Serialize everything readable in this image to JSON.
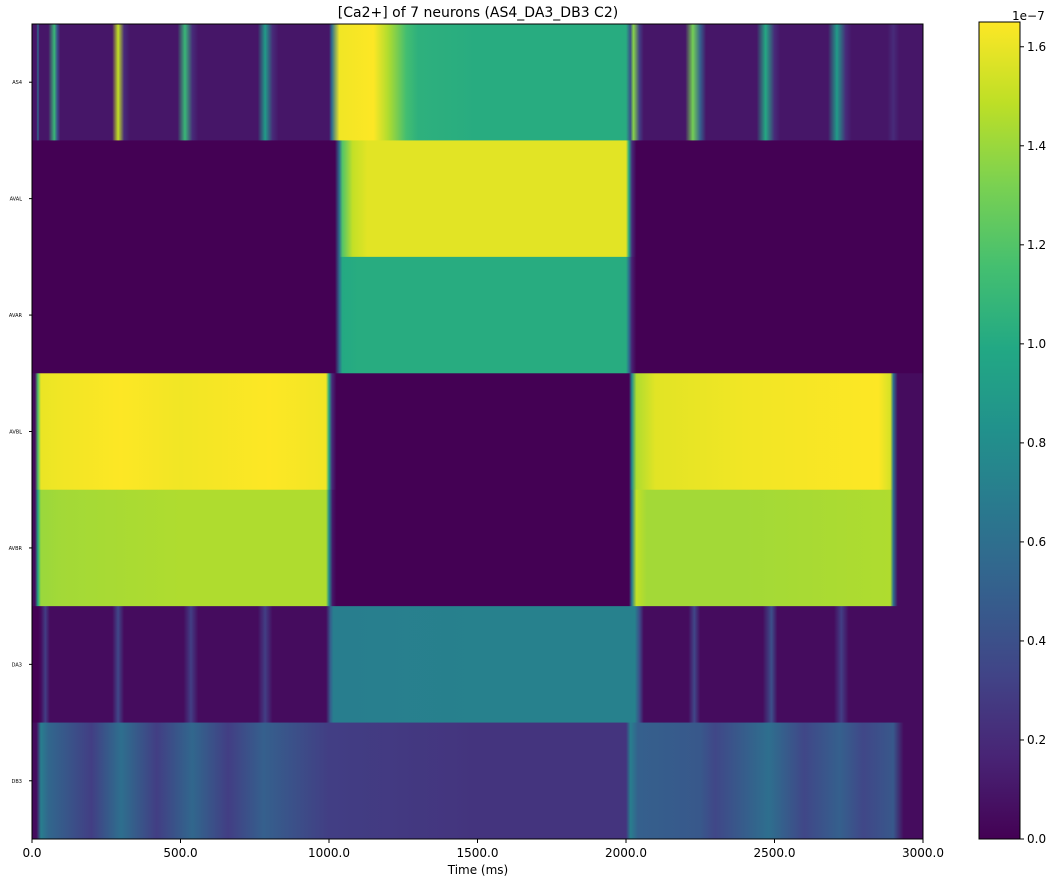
{
  "chart_data": {
    "type": "heatmap",
    "title": "[Ca2+] of 7 neurons (AS4_DA3_DB3 C2)",
    "xlabel": "Time (ms)",
    "ylabel": "",
    "xlim": [
      0,
      3000
    ],
    "x_ticks": [
      0,
      500,
      1000,
      1500,
      2000,
      2500,
      3000
    ],
    "x_tick_labels": [
      "0.0",
      "500.0",
      "1000.0",
      "1500.0",
      "2000.0",
      "2500.0",
      "3000.0"
    ],
    "rows": [
      "AS4",
      "AVAL",
      "AVAR",
      "AVBL",
      "AVBR",
      "DA3",
      "DB3"
    ],
    "colormap": "viridis",
    "colorbar": {
      "range": [
        0,
        1.65e-07
      ],
      "exponent_label": "1e−7",
      "ticks": [
        0,
        0.2,
        0.4,
        0.6,
        0.8,
        1.0,
        1.2,
        1.4,
        1.6
      ],
      "tick_labels": [
        "0.0",
        "0.2",
        "0.4",
        "0.6",
        "0.8",
        "1.0",
        "1.2",
        "1.4",
        "1.6"
      ],
      "scale": 1e-07
    },
    "series": [
      {
        "name": "AS4",
        "values_1e7": [
          [
            0,
            0.1
          ],
          [
            15,
            0.1
          ],
          [
            20,
            0.6
          ],
          [
            25,
            0.1
          ],
          [
            55,
            0.1
          ],
          [
            75,
            1.1
          ],
          [
            85,
            0.4
          ],
          [
            95,
            0.1
          ],
          [
            270,
            0.1
          ],
          [
            290,
            1.5
          ],
          [
            310,
            0.2
          ],
          [
            330,
            0.1
          ],
          [
            490,
            0.1
          ],
          [
            515,
            1.1
          ],
          [
            540,
            0.2
          ],
          [
            560,
            0.1
          ],
          [
            760,
            0.1
          ],
          [
            785,
            0.9
          ],
          [
            810,
            0.2
          ],
          [
            830,
            0.1
          ],
          [
            1000,
            0.1
          ],
          [
            1010,
            0.6
          ],
          [
            1035,
            1.62
          ],
          [
            1150,
            1.65
          ],
          [
            1200,
            1.45
          ],
          [
            1260,
            1.15
          ],
          [
            1300,
            1.05
          ],
          [
            1500,
            1.02
          ],
          [
            2000,
            1.02
          ],
          [
            2015,
            0.4
          ],
          [
            2025,
            1.35
          ],
          [
            2045,
            0.3
          ],
          [
            2060,
            0.1
          ],
          [
            2200,
            0.1
          ],
          [
            2225,
            1.3
          ],
          [
            2250,
            0.5
          ],
          [
            2270,
            0.1
          ],
          [
            2440,
            0.1
          ],
          [
            2470,
            1.0
          ],
          [
            2500,
            0.2
          ],
          [
            2520,
            0.1
          ],
          [
            2680,
            0.1
          ],
          [
            2710,
            0.9
          ],
          [
            2740,
            0.2
          ],
          [
            2760,
            0.1
          ],
          [
            2880,
            0.1
          ],
          [
            2900,
            0.2
          ],
          [
            2920,
            0.1
          ],
          [
            3000,
            0.1
          ]
        ]
      },
      {
        "name": "AVAL",
        "values_1e7": [
          [
            0,
            0.0
          ],
          [
            1020,
            0.0
          ],
          [
            1035,
            0.6
          ],
          [
            1045,
            1.2
          ],
          [
            1080,
            1.5
          ],
          [
            1130,
            1.58
          ],
          [
            1200,
            1.58
          ],
          [
            2000,
            1.58
          ],
          [
            2010,
            1.0
          ],
          [
            2020,
            0.2
          ],
          [
            2035,
            0.0
          ],
          [
            3000,
            0.0
          ]
        ]
      },
      {
        "name": "AVAR",
        "values_1e7": [
          [
            0,
            0.0
          ],
          [
            1020,
            0.0
          ],
          [
            1035,
            0.6
          ],
          [
            1045,
            1.0
          ],
          [
            1100,
            1.02
          ],
          [
            2000,
            1.02
          ],
          [
            2010,
            0.6
          ],
          [
            2020,
            0.15
          ],
          [
            2035,
            0.0
          ],
          [
            3000,
            0.0
          ]
        ]
      },
      {
        "name": "AVBL",
        "values_1e7": [
          [
            0,
            0.05
          ],
          [
            10,
            0.05
          ],
          [
            20,
            1.2
          ],
          [
            30,
            1.6
          ],
          [
            100,
            1.62
          ],
          [
            300,
            1.65
          ],
          [
            500,
            1.62
          ],
          [
            800,
            1.65
          ],
          [
            990,
            1.62
          ],
          [
            1000,
            1.0
          ],
          [
            1010,
            0.2
          ],
          [
            1025,
            0.0
          ],
          [
            2010,
            0.0
          ],
          [
            2020,
            0.8
          ],
          [
            2035,
            1.45
          ],
          [
            2100,
            1.58
          ],
          [
            2400,
            1.62
          ],
          [
            2850,
            1.65
          ],
          [
            2890,
            1.55
          ],
          [
            2900,
            0.6
          ],
          [
            2915,
            0.05
          ],
          [
            3000,
            0.05
          ]
        ]
      },
      {
        "name": "AVBR",
        "values_1e7": [
          [
            0,
            0.05
          ],
          [
            10,
            0.05
          ],
          [
            20,
            1.0
          ],
          [
            30,
            1.4
          ],
          [
            100,
            1.42
          ],
          [
            500,
            1.45
          ],
          [
            990,
            1.45
          ],
          [
            1000,
            0.8
          ],
          [
            1012,
            0.1
          ],
          [
            1025,
            0.0
          ],
          [
            2010,
            0.0
          ],
          [
            2020,
            0.7
          ],
          [
            2035,
            1.5
          ],
          [
            2070,
            1.42
          ],
          [
            2400,
            1.42
          ],
          [
            2890,
            1.45
          ],
          [
            2900,
            0.6
          ],
          [
            2915,
            0.05
          ],
          [
            3000,
            0.05
          ]
        ]
      },
      {
        "name": "DA3",
        "values_1e7": [
          [
            0,
            0.0
          ],
          [
            20,
            0.0
          ],
          [
            30,
            0.05
          ],
          [
            45,
            0.3
          ],
          [
            60,
            0.05
          ],
          [
            270,
            0.05
          ],
          [
            290,
            0.35
          ],
          [
            310,
            0.05
          ],
          [
            510,
            0.05
          ],
          [
            535,
            0.3
          ],
          [
            560,
            0.05
          ],
          [
            760,
            0.05
          ],
          [
            785,
            0.3
          ],
          [
            810,
            0.05
          ],
          [
            990,
            0.05
          ],
          [
            1005,
            0.5
          ],
          [
            1015,
            0.7
          ],
          [
            1500,
            0.72
          ],
          [
            2030,
            0.72
          ],
          [
            2045,
            0.4
          ],
          [
            2060,
            0.05
          ],
          [
            2210,
            0.05
          ],
          [
            2230,
            0.35
          ],
          [
            2250,
            0.05
          ],
          [
            2460,
            0.05
          ],
          [
            2490,
            0.4
          ],
          [
            2510,
            0.05
          ],
          [
            2700,
            0.05
          ],
          [
            2725,
            0.3
          ],
          [
            2750,
            0.05
          ],
          [
            3000,
            0.05
          ]
        ]
      },
      {
        "name": "DB3",
        "values_1e7": [
          [
            0,
            0.05
          ],
          [
            15,
            0.05
          ],
          [
            30,
            0.7
          ],
          [
            55,
            0.55
          ],
          [
            200,
            0.3
          ],
          [
            300,
            0.6
          ],
          [
            420,
            0.3
          ],
          [
            540,
            0.55
          ],
          [
            660,
            0.3
          ],
          [
            780,
            0.5
          ],
          [
            1000,
            0.3
          ],
          [
            1500,
            0.25
          ],
          [
            2000,
            0.25
          ],
          [
            2015,
            0.7
          ],
          [
            2040,
            0.5
          ],
          [
            2250,
            0.45
          ],
          [
            2300,
            0.35
          ],
          [
            2480,
            0.6
          ],
          [
            2600,
            0.35
          ],
          [
            2720,
            0.5
          ],
          [
            2800,
            0.35
          ],
          [
            2900,
            0.45
          ],
          [
            2935,
            0.05
          ],
          [
            3000,
            0.05
          ]
        ]
      }
    ]
  }
}
